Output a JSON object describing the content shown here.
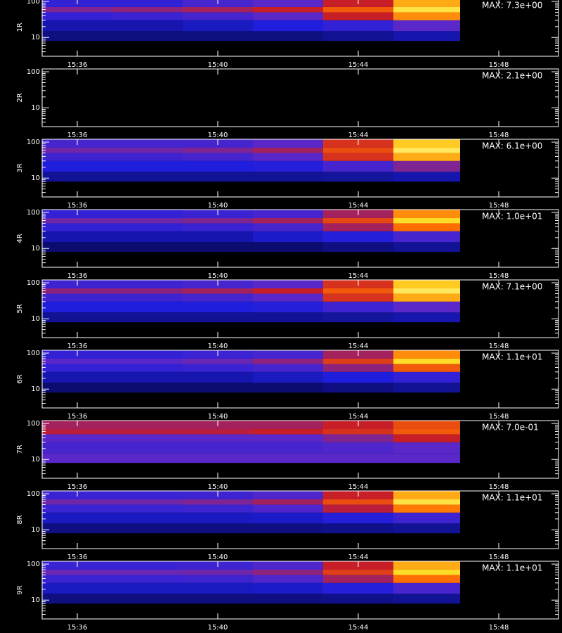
{
  "chart_data": [
    {
      "type": "heatmap",
      "ylabel": "1R",
      "annotation": "MAX: 7.3e+00",
      "log_y": true,
      "xlim": [
        935,
        949.7
      ],
      "xticks": [
        {
          "value": 936,
          "label": "15:36"
        },
        {
          "value": 940,
          "label": "15:40"
        },
        {
          "value": 944,
          "label": "15:44"
        },
        {
          "value": 948,
          "label": "15:48"
        }
      ],
      "ylim": [
        3,
        120
      ],
      "yticks": [
        10,
        100
      ],
      "yminor_ticks": [
        4,
        5,
        6,
        7,
        8,
        9,
        20,
        30,
        40,
        50,
        60,
        70,
        80,
        90
      ],
      "x_edges": [
        935,
        937,
        939,
        941,
        943,
        945,
        946.9
      ],
      "y_edges": [
        8,
        15,
        30,
        50,
        70,
        120
      ],
      "values": [
        [
          0.1,
          0.1,
          0.1,
          0.1,
          0.12,
          0.15
        ],
        [
          0.15,
          0.15,
          0.17,
          0.2,
          0.25,
          0.35
        ],
        [
          0.25,
          0.27,
          0.3,
          0.35,
          0.5,
          0.75
        ],
        [
          0.4,
          0.42,
          0.45,
          0.5,
          0.65,
          0.9
        ],
        [
          0.25,
          0.25,
          0.3,
          0.35,
          0.5,
          0.8
        ]
      ]
    },
    {
      "type": "heatmap",
      "ylabel": "2R",
      "annotation": "MAX: 2.1e+00",
      "log_y": true,
      "xlim": [
        935,
        949.7
      ],
      "xticks": [
        {
          "value": 936,
          "label": "15:36"
        },
        {
          "value": 940,
          "label": "15:40"
        },
        {
          "value": 944,
          "label": "15:44"
        },
        {
          "value": 948,
          "label": "15:48"
        }
      ],
      "ylim": [
        3,
        120
      ],
      "yticks": [
        10,
        100
      ],
      "yminor_ticks": [
        4,
        5,
        6,
        7,
        8,
        9,
        20,
        30,
        40,
        50,
        60,
        70,
        80,
        90
      ],
      "x_edges": [
        935,
        937,
        939,
        941,
        943,
        945,
        946.9
      ],
      "y_edges": [
        8,
        15,
        30,
        50,
        70,
        120
      ],
      "values": []
    },
    {
      "type": "heatmap",
      "ylabel": "3R",
      "annotation": "MAX: 6.1e+00",
      "log_y": true,
      "xlim": [
        935,
        949.7
      ],
      "xticks": [
        {
          "value": 936,
          "label": "15:36"
        },
        {
          "value": 940,
          "label": "15:40"
        },
        {
          "value": 944,
          "label": "15:44"
        },
        {
          "value": 948,
          "label": "15:48"
        }
      ],
      "ylim": [
        3,
        120
      ],
      "yticks": [
        10,
        100
      ],
      "yminor_ticks": [
        4,
        5,
        6,
        7,
        8,
        9,
        20,
        30,
        40,
        50,
        60,
        70,
        80,
        90
      ],
      "x_edges": [
        935,
        937,
        939,
        941,
        943,
        945,
        946.9
      ],
      "y_edges": [
        8,
        15,
        30,
        50,
        70,
        120
      ],
      "values": [
        [
          0.12,
          0.12,
          0.12,
          0.12,
          0.13,
          0.15
        ],
        [
          0.2,
          0.2,
          0.2,
          0.22,
          0.3,
          0.4
        ],
        [
          0.28,
          0.28,
          0.3,
          0.35,
          0.55,
          0.8
        ],
        [
          0.38,
          0.38,
          0.4,
          0.45,
          0.62,
          0.92
        ],
        [
          0.3,
          0.3,
          0.3,
          0.35,
          0.55,
          0.85
        ]
      ]
    },
    {
      "type": "heatmap",
      "ylabel": "4R",
      "annotation": "MAX: 1.0e+01",
      "log_y": true,
      "xlim": [
        935,
        949.7
      ],
      "xticks": [
        {
          "value": 936,
          "label": "15:36"
        },
        {
          "value": 940,
          "label": "15:40"
        },
        {
          "value": 944,
          "label": "15:44"
        },
        {
          "value": 948,
          "label": "15:48"
        }
      ],
      "ylim": [
        3,
        120
      ],
      "yticks": [
        10,
        100
      ],
      "yminor_ticks": [
        4,
        5,
        6,
        7,
        8,
        9,
        20,
        30,
        40,
        50,
        60,
        70,
        80,
        90
      ],
      "x_edges": [
        935,
        937,
        939,
        941,
        943,
        945,
        946.9
      ],
      "y_edges": [
        8,
        15,
        30,
        50,
        70,
        120
      ],
      "values": [
        [
          0.08,
          0.08,
          0.08,
          0.08,
          0.1,
          0.12
        ],
        [
          0.15,
          0.15,
          0.15,
          0.18,
          0.22,
          0.3
        ],
        [
          0.25,
          0.25,
          0.27,
          0.3,
          0.45,
          0.7
        ],
        [
          0.38,
          0.38,
          0.4,
          0.45,
          0.6,
          0.88
        ],
        [
          0.25,
          0.25,
          0.27,
          0.3,
          0.45,
          0.75
        ]
      ]
    },
    {
      "type": "heatmap",
      "ylabel": "5R",
      "annotation": "MAX: 7.1e+00",
      "log_y": true,
      "xlim": [
        935,
        949.7
      ],
      "xticks": [
        {
          "value": 936,
          "label": "15:36"
        },
        {
          "value": 940,
          "label": "15:40"
        },
        {
          "value": 944,
          "label": "15:44"
        },
        {
          "value": 948,
          "label": "15:48"
        }
      ],
      "ylim": [
        3,
        120
      ],
      "yticks": [
        10,
        100
      ],
      "yminor_ticks": [
        4,
        5,
        6,
        7,
        8,
        9,
        20,
        30,
        40,
        50,
        60,
        70,
        80,
        90
      ],
      "x_edges": [
        935,
        937,
        939,
        941,
        943,
        945,
        946.9
      ],
      "y_edges": [
        8,
        15,
        30,
        50,
        70,
        120
      ],
      "values": [
        [
          0.12,
          0.12,
          0.12,
          0.12,
          0.13,
          0.15
        ],
        [
          0.2,
          0.2,
          0.2,
          0.22,
          0.28,
          0.35
        ],
        [
          0.28,
          0.28,
          0.3,
          0.35,
          0.55,
          0.8
        ],
        [
          0.42,
          0.42,
          0.45,
          0.5,
          0.65,
          0.92
        ],
        [
          0.28,
          0.28,
          0.3,
          0.35,
          0.55,
          0.85
        ]
      ]
    },
    {
      "type": "heatmap",
      "ylabel": "6R",
      "annotation": "MAX: 1.1e+01",
      "log_y": true,
      "xlim": [
        935,
        949.7
      ],
      "xticks": [
        {
          "value": 936,
          "label": "15:36"
        },
        {
          "value": 940,
          "label": "15:40"
        },
        {
          "value": 944,
          "label": "15:44"
        },
        {
          "value": 948,
          "label": "15:48"
        }
      ],
      "ylim": [
        3,
        120
      ],
      "yticks": [
        10,
        100
      ],
      "yminor_ticks": [
        4,
        5,
        6,
        7,
        8,
        9,
        20,
        30,
        40,
        50,
        60,
        70,
        80,
        90
      ],
      "x_edges": [
        935,
        937,
        939,
        941,
        943,
        945,
        946.9
      ],
      "y_edges": [
        8,
        15,
        30,
        50,
        70,
        120
      ],
      "values": [
        [
          0.08,
          0.08,
          0.08,
          0.08,
          0.1,
          0.12
        ],
        [
          0.15,
          0.15,
          0.15,
          0.17,
          0.2,
          0.25
        ],
        [
          0.25,
          0.25,
          0.27,
          0.3,
          0.42,
          0.65
        ],
        [
          0.35,
          0.35,
          0.37,
          0.42,
          0.58,
          0.88
        ],
        [
          0.25,
          0.25,
          0.27,
          0.3,
          0.45,
          0.75
        ]
      ]
    },
    {
      "type": "heatmap",
      "ylabel": "7R",
      "annotation": "MAX: 7.0e-01",
      "log_y": true,
      "xlim": [
        935,
        949.7
      ],
      "xticks": [
        {
          "value": 936,
          "label": "15:36"
        },
        {
          "value": 940,
          "label": "15:40"
        },
        {
          "value": 944,
          "label": "15:44"
        },
        {
          "value": 948,
          "label": "15:48"
        }
      ],
      "ylim": [
        3,
        120
      ],
      "yticks": [
        10,
        100
      ],
      "yminor_ticks": [
        4,
        5,
        6,
        7,
        8,
        9,
        20,
        30,
        40,
        50,
        60,
        70,
        80,
        90
      ],
      "x_edges": [
        935,
        937,
        939,
        941,
        943,
        945,
        946.9
      ],
      "y_edges": [
        8,
        15,
        30,
        50,
        70,
        120
      ],
      "values": [
        [
          0.35,
          0.35,
          0.35,
          0.35,
          0.35,
          0.35
        ],
        [
          0.3,
          0.3,
          0.3,
          0.3,
          0.32,
          0.35
        ],
        [
          0.35,
          0.35,
          0.35,
          0.35,
          0.4,
          0.5
        ],
        [
          0.48,
          0.48,
          0.48,
          0.5,
          0.55,
          0.65
        ],
        [
          0.45,
          0.45,
          0.45,
          0.45,
          0.5,
          0.62
        ]
      ]
    },
    {
      "type": "heatmap",
      "ylabel": "8R",
      "annotation": "MAX: 1.1e+01",
      "log_y": true,
      "xlim": [
        935,
        949.7
      ],
      "xticks": [
        {
          "value": 936,
          "label": "15:36"
        },
        {
          "value": 940,
          "label": "15:40"
        },
        {
          "value": 944,
          "label": "15:44"
        },
        {
          "value": 948,
          "label": "15:48"
        }
      ],
      "ylim": [
        3,
        120
      ],
      "yticks": [
        10,
        100
      ],
      "yminor_ticks": [
        4,
        5,
        6,
        7,
        8,
        9,
        20,
        30,
        40,
        50,
        60,
        70,
        80,
        90
      ],
      "x_edges": [
        935,
        937,
        939,
        941,
        943,
        945,
        946.9
      ],
      "y_edges": [
        8,
        15,
        30,
        50,
        70,
        120
      ],
      "values": [
        [
          0.1,
          0.1,
          0.1,
          0.1,
          0.11,
          0.12
        ],
        [
          0.17,
          0.17,
          0.17,
          0.18,
          0.22,
          0.28
        ],
        [
          0.27,
          0.27,
          0.28,
          0.32,
          0.48,
          0.72
        ],
        [
          0.38,
          0.38,
          0.4,
          0.45,
          0.62,
          0.9
        ],
        [
          0.27,
          0.27,
          0.28,
          0.32,
          0.5,
          0.8
        ]
      ]
    },
    {
      "type": "heatmap",
      "ylabel": "9R",
      "annotation": "MAX: 1.1e+01",
      "log_y": true,
      "xlim": [
        935,
        949.7
      ],
      "xticks": [
        {
          "value": 936,
          "label": "15:36"
        },
        {
          "value": 940,
          "label": "15:40"
        },
        {
          "value": 944,
          "label": "15:44"
        },
        {
          "value": 948,
          "label": "15:48"
        }
      ],
      "ylim": [
        3,
        120
      ],
      "yticks": [
        10,
        100
      ],
      "yminor_ticks": [
        4,
        5,
        6,
        7,
        8,
        9,
        20,
        30,
        40,
        50,
        60,
        70,
        80,
        90
      ],
      "x_edges": [
        935,
        937,
        939,
        941,
        943,
        945,
        946.9
      ],
      "y_edges": [
        8,
        15,
        30,
        50,
        70,
        120
      ],
      "values": [
        [
          0.1,
          0.1,
          0.1,
          0.1,
          0.11,
          0.12
        ],
        [
          0.17,
          0.17,
          0.17,
          0.18,
          0.22,
          0.3
        ],
        [
          0.27,
          0.27,
          0.28,
          0.32,
          0.45,
          0.7
        ],
        [
          0.37,
          0.37,
          0.38,
          0.42,
          0.58,
          0.88
        ],
        [
          0.27,
          0.27,
          0.28,
          0.32,
          0.5,
          0.8
        ]
      ]
    }
  ]
}
